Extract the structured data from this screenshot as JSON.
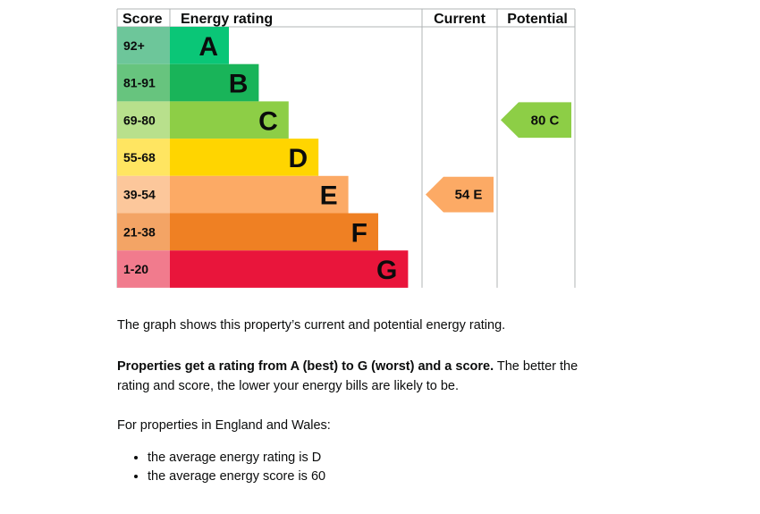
{
  "chart_data": {
    "type": "bar",
    "headers": {
      "score": "Score",
      "rating": "Energy rating",
      "current": "Current",
      "potential": "Potential"
    },
    "bands": [
      {
        "score": "92+",
        "letter": "A",
        "color": "#0a8647",
        "score_bg": "#6dc69a",
        "bar": "#0ac677"
      },
      {
        "score": "81-91",
        "letter": "B",
        "color": "#19b459",
        "score_bg": "#67c47e",
        "bar": "#19b459"
      },
      {
        "score": "69-80",
        "letter": "C",
        "color": "#8dce46",
        "score_bg": "#b8e08c",
        "bar": "#8dce46"
      },
      {
        "score": "55-68",
        "letter": "D",
        "color": "#ffd500",
        "score_bg": "#ffe561",
        "bar": "#ffd500"
      },
      {
        "score": "39-54",
        "letter": "E",
        "color": "#fcaa65",
        "score_bg": "#fcc79b",
        "bar": "#fcaa65"
      },
      {
        "score": "21-38",
        "letter": "F",
        "color": "#ef8023",
        "score_bg": "#f3a465",
        "bar": "#ef8023"
      },
      {
        "score": "1-20",
        "letter": "G",
        "color": "#e9153b",
        "score_bg": "#f17b8d",
        "bar": "#e9153b"
      }
    ],
    "current": {
      "value": 54,
      "letter": "E",
      "label": "54 E",
      "color": "#fcaa65"
    },
    "potential": {
      "value": 80,
      "letter": "C",
      "label": "80 C",
      "color": "#8dce46"
    }
  },
  "text": {
    "intro": "The graph shows this property’s current and potential energy rating.",
    "rating_bold": "Properties get a rating from A (best) to G (worst) and a score.",
    "rating_rest": " The better the rating and score, the lower your energy bills are likely to be.",
    "england_wales": "For properties in England and Wales:",
    "avg_rating": "the average energy rating is D",
    "avg_score": "the average energy score is 60"
  }
}
